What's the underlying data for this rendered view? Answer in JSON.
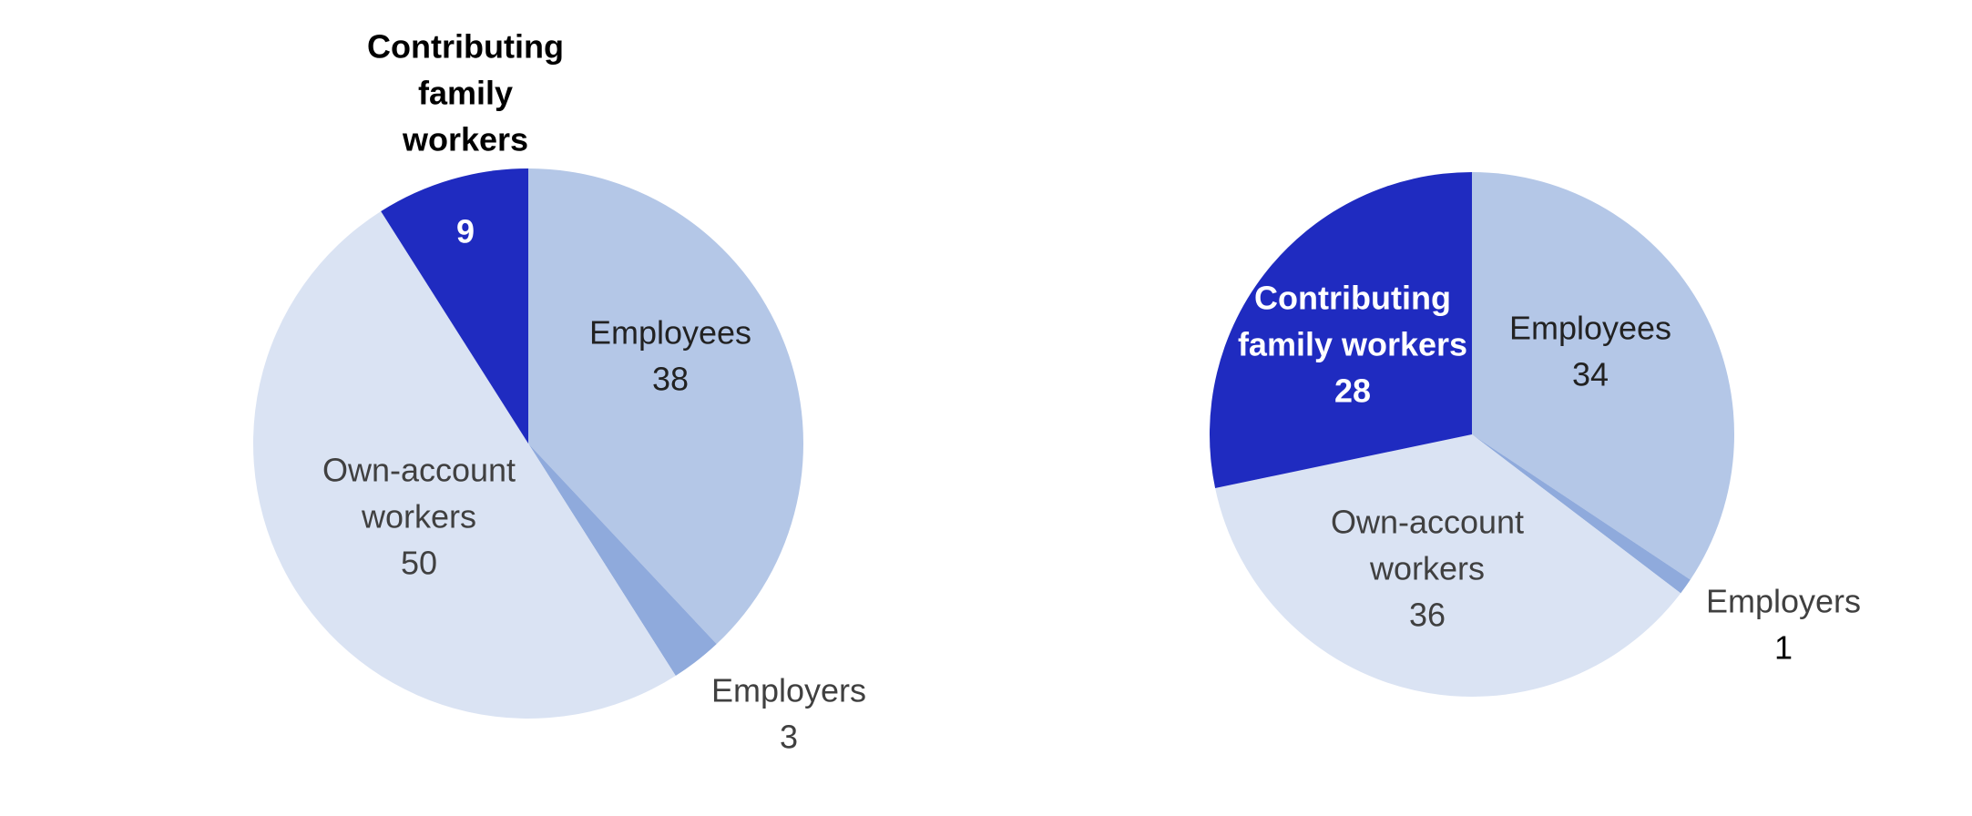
{
  "chart_data": [
    {
      "type": "pie",
      "categories": [
        "Employees",
        "Employers",
        "Own-account workers",
        "Contributing family workers"
      ],
      "values": [
        38,
        3,
        50,
        9
      ],
      "colors": [
        "#b4c7e7",
        "#8faadc",
        "#dae3f3",
        "#1f2bc0"
      ],
      "labels": [
        {
          "lines": [
            "Employees"
          ],
          "value": "38",
          "color": "#222222",
          "bold": false
        },
        {
          "lines": [
            "Employers"
          ],
          "value": "3",
          "color": "#404040",
          "bold": false
        },
        {
          "lines": [
            "Own-account",
            "workers"
          ],
          "value": "50",
          "color": "#404040",
          "bold": false
        },
        {
          "lines": [
            "Contributing",
            "family",
            "workers"
          ],
          "value": "9",
          "color": "#000000",
          "value_color": "#ffffff",
          "bold": true
        }
      ]
    },
    {
      "type": "pie",
      "categories": [
        "Employees",
        "Employers",
        "Own-account workers",
        "Contributing family workers"
      ],
      "values": [
        34,
        1,
        36,
        28
      ],
      "colors": [
        "#b4c7e7",
        "#8faadc",
        "#dae3f3",
        "#1f2bc0"
      ],
      "labels": [
        {
          "lines": [
            "Employees"
          ],
          "value": "34",
          "color": "#222222",
          "bold": false
        },
        {
          "lines": [
            "Employers"
          ],
          "value": "1",
          "color": "#404040",
          "value_color": "#000000",
          "bold": false
        },
        {
          "lines": [
            "Own-account",
            "workers"
          ],
          "value": "36",
          "color": "#404040",
          "bold": false
        },
        {
          "lines": [
            "Contributing",
            "family workers"
          ],
          "value": "28",
          "color": "#ffffff",
          "bold": true
        }
      ]
    }
  ]
}
